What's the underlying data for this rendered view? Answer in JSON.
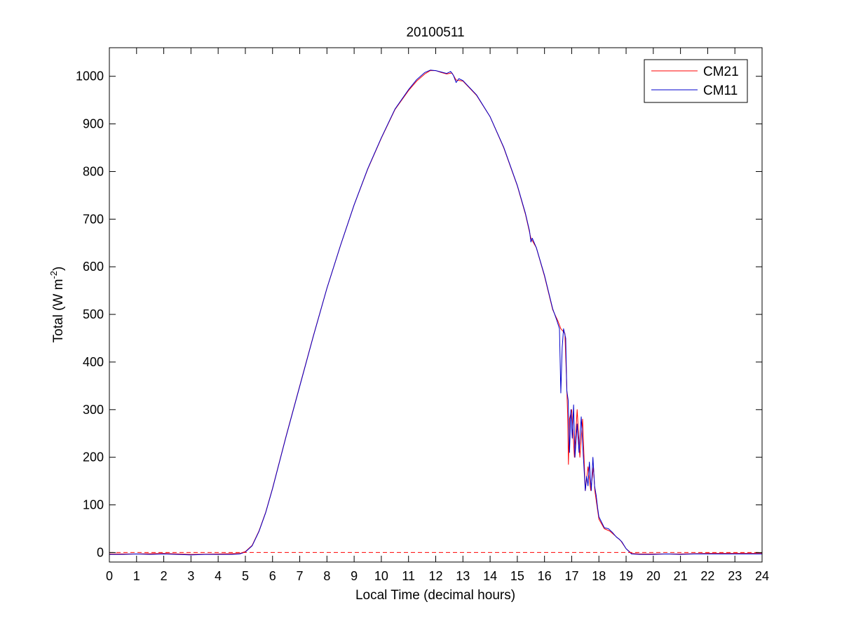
{
  "chart_data": {
    "type": "line",
    "title": "20100511",
    "xlabel": "Local Time (decimal hours)",
    "ylabel_main": "Total (W m",
    "ylabel_sup": "-2",
    "ylabel_close": ")",
    "xlim": [
      0,
      24
    ],
    "ylim": [
      -20,
      1060
    ],
    "xticks": [
      0,
      1,
      2,
      3,
      4,
      5,
      6,
      7,
      8,
      9,
      10,
      11,
      12,
      13,
      14,
      15,
      16,
      17,
      18,
      19,
      20,
      21,
      22,
      23,
      24
    ],
    "yticks": [
      0,
      100,
      200,
      300,
      400,
      500,
      600,
      700,
      800,
      900,
      1000
    ],
    "grid": false,
    "legend_position": "top-right",
    "reference_line": {
      "y": 0,
      "style": "dashed",
      "color": "#ff0000"
    },
    "series": [
      {
        "name": "CM21",
        "color": "#ff0000",
        "points": [
          [
            0,
            -3
          ],
          [
            1,
            -3
          ],
          [
            2,
            -2
          ],
          [
            3,
            -4
          ],
          [
            4,
            -3
          ],
          [
            4.8,
            -2
          ],
          [
            5,
            2
          ],
          [
            5.25,
            15
          ],
          [
            5.5,
            45
          ],
          [
            5.75,
            85
          ],
          [
            6,
            135
          ],
          [
            6.25,
            190
          ],
          [
            6.5,
            245
          ],
          [
            7,
            350
          ],
          [
            7.5,
            455
          ],
          [
            8,
            555
          ],
          [
            8.5,
            645
          ],
          [
            9,
            730
          ],
          [
            9.5,
            805
          ],
          [
            10,
            870
          ],
          [
            10.5,
            930
          ],
          [
            11,
            970
          ],
          [
            11.3,
            990
          ],
          [
            11.6,
            1005
          ],
          [
            11.8,
            1012
          ],
          [
            12,
            1012
          ],
          [
            12.2,
            1008
          ],
          [
            12.4,
            1005
          ],
          [
            12.6,
            1007
          ],
          [
            12.75,
            992
          ],
          [
            13,
            990
          ],
          [
            13.5,
            960
          ],
          [
            14,
            915
          ],
          [
            14.5,
            850
          ],
          [
            15,
            770
          ],
          [
            15.3,
            710
          ],
          [
            15.5,
            660
          ],
          [
            15.7,
            640
          ],
          [
            16,
            580
          ],
          [
            16.3,
            510
          ],
          [
            16.5,
            485
          ],
          [
            16.6,
            470
          ],
          [
            16.75,
            460
          ],
          [
            16.8,
            380
          ],
          [
            16.85,
            290
          ],
          [
            16.88,
            185
          ],
          [
            16.92,
            280
          ],
          [
            17,
            300
          ],
          [
            17.1,
            200
          ],
          [
            17.2,
            300
          ],
          [
            17.3,
            200
          ],
          [
            17.4,
            280
          ],
          [
            17.5,
            130
          ],
          [
            17.6,
            180
          ],
          [
            17.7,
            130
          ],
          [
            17.8,
            180
          ],
          [
            17.85,
            130
          ],
          [
            17.9,
            110
          ],
          [
            18,
            70
          ],
          [
            18.2,
            50
          ],
          [
            18.4,
            45
          ],
          [
            18.6,
            35
          ],
          [
            18.8,
            25
          ],
          [
            19,
            8
          ],
          [
            19.2,
            -2
          ],
          [
            19.5,
            -3
          ],
          [
            20,
            -3
          ],
          [
            21,
            -3
          ],
          [
            22,
            -2
          ],
          [
            23,
            -2
          ],
          [
            24,
            -2
          ]
        ]
      },
      {
        "name": "CM11",
        "color": "#0000cc",
        "points": [
          [
            0,
            -4
          ],
          [
            0.5,
            -4
          ],
          [
            1,
            -3
          ],
          [
            1.5,
            -4
          ],
          [
            2,
            -3
          ],
          [
            2.5,
            -4
          ],
          [
            3,
            -5
          ],
          [
            3.5,
            -4
          ],
          [
            4,
            -4
          ],
          [
            4.5,
            -4
          ],
          [
            4.8,
            -3
          ],
          [
            5,
            1
          ],
          [
            5.25,
            14
          ],
          [
            5.5,
            44
          ],
          [
            5.75,
            84
          ],
          [
            6,
            134
          ],
          [
            6.25,
            189
          ],
          [
            6.5,
            244
          ],
          [
            7,
            349
          ],
          [
            7.5,
            454
          ],
          [
            8,
            555
          ],
          [
            8.5,
            645
          ],
          [
            9,
            730
          ],
          [
            9.5,
            806
          ],
          [
            10,
            871
          ],
          [
            10.5,
            931
          ],
          [
            11,
            972
          ],
          [
            11.3,
            993
          ],
          [
            11.6,
            1008
          ],
          [
            11.8,
            1013
          ],
          [
            12,
            1012
          ],
          [
            12.2,
            1009
          ],
          [
            12.4,
            1006
          ],
          [
            12.55,
            1010
          ],
          [
            12.65,
            1002
          ],
          [
            12.75,
            987
          ],
          [
            12.85,
            995
          ],
          [
            13,
            991
          ],
          [
            13.5,
            961
          ],
          [
            14,
            915
          ],
          [
            14.5,
            851
          ],
          [
            15,
            771
          ],
          [
            15.3,
            712
          ],
          [
            15.45,
            675
          ],
          [
            15.5,
            652
          ],
          [
            15.55,
            660
          ],
          [
            15.7,
            640
          ],
          [
            16,
            582
          ],
          [
            16.3,
            512
          ],
          [
            16.45,
            488
          ],
          [
            16.55,
            470
          ],
          [
            16.6,
            335
          ],
          [
            16.65,
            430
          ],
          [
            16.7,
            470
          ],
          [
            16.78,
            450
          ],
          [
            16.82,
            340
          ],
          [
            16.87,
            320
          ],
          [
            16.92,
            210
          ],
          [
            16.97,
            300
          ],
          [
            17.02,
            240
          ],
          [
            17.07,
            310
          ],
          [
            17.12,
            200
          ],
          [
            17.2,
            270
          ],
          [
            17.27,
            210
          ],
          [
            17.35,
            285
          ],
          [
            17.42,
            210
          ],
          [
            17.5,
            130
          ],
          [
            17.55,
            160
          ],
          [
            17.6,
            140
          ],
          [
            17.65,
            190
          ],
          [
            17.72,
            130
          ],
          [
            17.78,
            200
          ],
          [
            17.84,
            140
          ],
          [
            17.9,
            120
          ],
          [
            17.95,
            95
          ],
          [
            18,
            75
          ],
          [
            18.2,
            52
          ],
          [
            18.35,
            50
          ],
          [
            18.5,
            42
          ],
          [
            18.65,
            32
          ],
          [
            18.75,
            28
          ],
          [
            18.85,
            22
          ],
          [
            19,
            8
          ],
          [
            19.2,
            -3
          ],
          [
            19.5,
            -4
          ],
          [
            20,
            -4
          ],
          [
            20.5,
            -3
          ],
          [
            21,
            -4
          ],
          [
            21.5,
            -3
          ],
          [
            22,
            -3
          ],
          [
            23,
            -3
          ],
          [
            24,
            -3
          ]
        ]
      }
    ]
  }
}
